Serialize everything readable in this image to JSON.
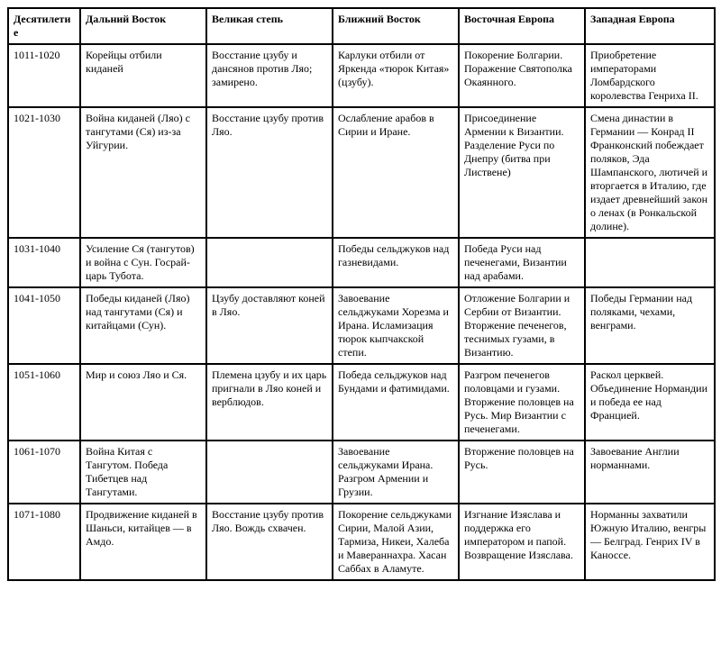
{
  "table": {
    "columns": [
      "Десятилетие",
      "Дальний Восток",
      "Великая степь",
      "Ближний Восток",
      "Восточная Европа",
      "Западная Европа"
    ],
    "rows": [
      {
        "decade": "1011-1020",
        "far_east": "Корейцы отбили киданей",
        "great_steppe": "Восстание цзубу и дансянов против Ляо; замирено.",
        "near_east": "Карлуки отбили от Яркенда «тюрок Китая» (цзубу).",
        "east_europe": "Покорение Болгарии. Поражение Святополка Окаянного.",
        "west_europe": "Приобретение императорами Ломбардского королевства Генриха II."
      },
      {
        "decade": "1021-1030",
        "far_east": "Война киданей (Ляо) с тангутами (Ся) из-за Уйгурии.",
        "great_steppe": "Восстание цзубу против Ляо.",
        "near_east": "Ослабление арабов в Сирии и Иране.",
        "east_europe": "Присоединение Армении к Византии. Разделение Руси по Днепру (битва при Листвене)",
        "west_europe": "Смена династии в Германии — Конрад II Франконский побеждает поляков, Эда Шампанского, лютичей и вторгается в Италию, где издает древнейший закон о ленах (в Ронкальской долине)."
      },
      {
        "decade": "1031-1040",
        "far_east": "Усиление Ся (тангутов) и война с Сун. Госрай-царь Тубота.",
        "great_steppe": "",
        "near_east": "Победы сельджуков над газневидами.",
        "east_europe": "Победа Руси над печенегами, Византии над арабами.",
        "west_europe": ""
      },
      {
        "decade": "1041-1050",
        "far_east": "Победы киданей (Ляо) над тангутами (Ся) и китайцами (Сун).",
        "great_steppe": "Цзубу доставляют коней в Ляо.",
        "near_east": "Завоевание сельджуками Хорезма и Ирана. Исламизация тюрок кыпчакской степи.",
        "east_europe": "Отложение Болгарии и Сербии от Византии. Вторжение печенегов, теснимых гузами, в Византию.",
        "west_europe": "Победы Германии над поляками, чехами, венграми."
      },
      {
        "decade": "1051-1060",
        "far_east": "Мир и союз Ляо и Ся.",
        "great_steppe": "Племена цзубу и их царь пригнали в Ляо коней и верблюдов.",
        "near_east": "Победа сельджуков над Бундами и фатимидами.",
        "east_europe": "Разгром печенегов половцами и гузами. Вторжение половцев на Русь. Мир Византии с печенегами.",
        "west_europe": "Раскол церквей. Объединение Нормандии и победа ее над Францией."
      },
      {
        "decade": "1061-1070",
        "far_east": "Война Китая с Тангутом. Победа Тибетцев над Тангутами.",
        "great_steppe": "",
        "near_east": "Завоевание сельджуками Ирана. Разгром Армении и Грузии.",
        "east_europe": "Вторжение половцев на Русь.",
        "west_europe": "Завоевание Англии норманнами."
      },
      {
        "decade": "1071-1080",
        "far_east": "Продвижение киданей в Шаньси, китайцев — в Амдо.",
        "great_steppe": "Восстание цзубу против Ляо. Вождь схвачен.",
        "near_east": "Покорение сельджуками Сирии, Малой Азии, Тармиза, Никеи, Халеба и Мавераннахра. Хасан Саббах в Аламуте.",
        "east_europe": "Изгнание Изяслава и поддержка его императором и папой. Возвращение Изяслава.",
        "west_europe": "Норманны захватили Южную Италию, венгры — Белград. Генрих IV в Каноссе."
      }
    ]
  }
}
